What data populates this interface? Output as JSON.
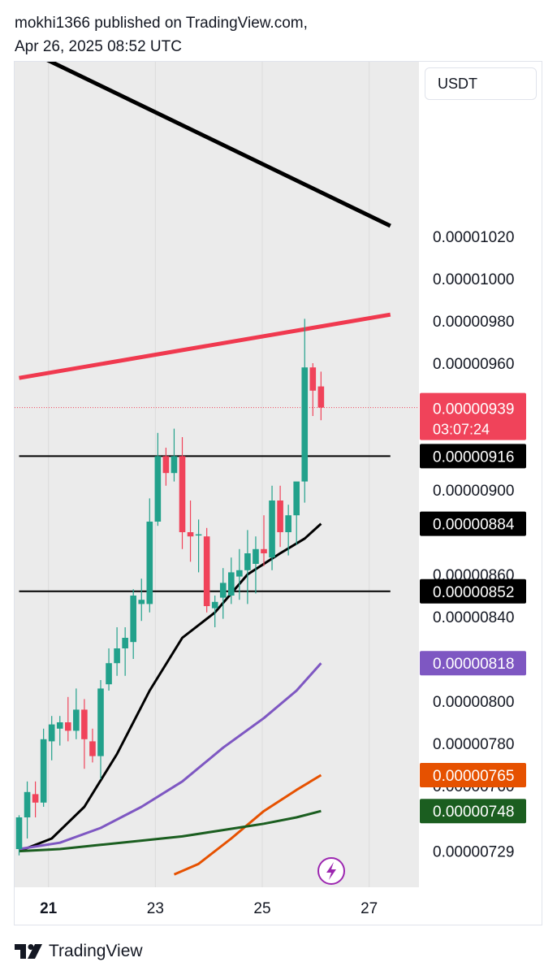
{
  "header": {
    "line1": "mokhi1366 published on TradingView.com,",
    "line2": "Apr 26, 2025 08:52 UTC"
  },
  "currency": "USDT",
  "footer": {
    "brand": "TradingView",
    "logo_icon": "tradingview-logo-icon"
  },
  "colors": {
    "up": "#22a18b",
    "down": "#f0435a",
    "black": "#000000",
    "purple": "#7e57c2",
    "orange": "#e65100",
    "green": "#1b5e20",
    "red_line": "#f0394f",
    "plot_bg": "#ebebeb"
  },
  "chart_data": {
    "type": "candlestick",
    "x_ticks": [
      "21",
      "23",
      "25",
      "27"
    ],
    "y_ticks": [
      "0.00001020",
      "0.00001000",
      "0.00000980",
      "0.00000960",
      "0.00000900",
      "0.00000860",
      "0.00000840",
      "0.00000800",
      "0.00000780",
      "0.00000760",
      "0.00000729"
    ],
    "last_price": {
      "value": "0.00000939",
      "countdown": "03:07:24"
    },
    "price_labels": [
      {
        "value": "0.00000916",
        "color": "#000000",
        "y": 9.16e-06
      },
      {
        "value": "0.00000884",
        "color": "#000000",
        "y": 8.84e-06
      },
      {
        "value": "0.00000852",
        "color": "#000000",
        "y": 8.52e-06
      },
      {
        "value": "0.00000818",
        "color": "#7e57c2",
        "y": 8.18e-06
      },
      {
        "value": "0.00000765",
        "color": "#e65100",
        "y": 7.65e-06
      },
      {
        "value": "0.00000748",
        "color": "#1b5e20",
        "y": 7.48e-06
      }
    ],
    "candles": [
      {
        "o": 7.3e-06,
        "h": 7.46e-06,
        "l": 7.27e-06,
        "c": 7.45e-06
      },
      {
        "o": 7.45e-06,
        "h": 7.62e-06,
        "l": 7.35e-06,
        "c": 7.57e-06
      },
      {
        "o": 7.56e-06,
        "h": 7.62e-06,
        "l": 7.45e-06,
        "c": 7.52e-06
      },
      {
        "o": 7.52e-06,
        "h": 7.87e-06,
        "l": 7.5e-06,
        "c": 7.82e-06
      },
      {
        "o": 7.81e-06,
        "h": 7.93e-06,
        "l": 7.72e-06,
        "c": 7.89e-06
      },
      {
        "o": 7.87e-06,
        "h": 7.93e-06,
        "l": 7.79e-06,
        "c": 7.9e-06
      },
      {
        "o": 7.9e-06,
        "h": 8.02e-06,
        "l": 7.81e-06,
        "c": 7.86e-06
      },
      {
        "o": 7.86e-06,
        "h": 8.06e-06,
        "l": 7.82e-06,
        "c": 7.96e-06
      },
      {
        "o": 7.96e-06,
        "h": 8.01e-06,
        "l": 7.68e-06,
        "c": 7.82e-06
      },
      {
        "o": 7.81e-06,
        "h": 7.87e-06,
        "l": 7.71e-06,
        "c": 7.74e-06
      },
      {
        "o": 7.74e-06,
        "h": 8.1e-06,
        "l": 7.63e-06,
        "c": 8.06e-06
      },
      {
        "o": 8.08e-06,
        "h": 8.25e-06,
        "l": 8.05e-06,
        "c": 8.18e-06
      },
      {
        "o": 8.18e-06,
        "h": 8.35e-06,
        "l": 8.12e-06,
        "c": 8.25e-06
      },
      {
        "o": 8.25e-06,
        "h": 8.35e-06,
        "l": 8.12e-06,
        "c": 8.3e-06
      },
      {
        "o": 8.28e-06,
        "h": 8.53e-06,
        "l": 8.2e-06,
        "c": 8.5e-06
      },
      {
        "o": 8.46e-06,
        "h": 8.58e-06,
        "l": 8.38e-06,
        "c": 8.48e-06
      },
      {
        "o": 8.46e-06,
        "h": 8.96e-06,
        "l": 8.42e-06,
        "c": 8.85e-06
      },
      {
        "o": 8.85e-06,
        "h": 9.27e-06,
        "l": 8.83e-06,
        "c": 9.16e-06
      },
      {
        "o": 9.16e-06,
        "h": 9.2e-06,
        "l": 9.02e-06,
        "c": 9.08e-06
      },
      {
        "o": 9.08e-06,
        "h": 9.29e-06,
        "l": 9.04e-06,
        "c": 9.16e-06
      },
      {
        "o": 9.16e-06,
        "h": 9.25e-06,
        "l": 8.72e-06,
        "c": 8.8e-06
      },
      {
        "o": 8.8e-06,
        "h": 8.95e-06,
        "l": 8.66e-06,
        "c": 8.78e-06
      },
      {
        "o": 8.79e-06,
        "h": 8.86e-06,
        "l": 8.61e-06,
        "c": 8.79e-06
      },
      {
        "o": 8.78e-06,
        "h": 8.82e-06,
        "l": 8.42e-06,
        "c": 8.45e-06
      },
      {
        "o": 8.44e-06,
        "h": 8.5e-06,
        "l": 8.35e-06,
        "c": 8.47e-06
      },
      {
        "o": 8.49e-06,
        "h": 8.63e-06,
        "l": 8.39e-06,
        "c": 8.56e-06
      },
      {
        "o": 8.5e-06,
        "h": 8.68e-06,
        "l": 8.46e-06,
        "c": 8.61e-06
      },
      {
        "o": 8.59e-06,
        "h": 8.72e-06,
        "l": 8.48e-06,
        "c": 8.62e-06
      },
      {
        "o": 8.62e-06,
        "h": 8.81e-06,
        "l": 8.46e-06,
        "c": 8.7e-06
      },
      {
        "o": 8.65e-06,
        "h": 8.78e-06,
        "l": 8.51e-06,
        "c": 8.72e-06
      },
      {
        "o": 8.72e-06,
        "h": 8.88e-06,
        "l": 8.64e-06,
        "c": 8.7e-06
      },
      {
        "o": 8.68e-06,
        "h": 9.02e-06,
        "l": 8.62e-06,
        "c": 8.95e-06
      },
      {
        "o": 8.95e-06,
        "h": 9.02e-06,
        "l": 8.73e-06,
        "c": 8.8e-06
      },
      {
        "o": 8.8e-06,
        "h": 8.93e-06,
        "l": 8.69e-06,
        "c": 8.88e-06
      },
      {
        "o": 8.88e-06,
        "h": 9.02e-06,
        "l": 8.74e-06,
        "c": 9.04e-06
      },
      {
        "o": 9.04e-06,
        "h": 9.81e-06,
        "l": 8.94e-06,
        "c": 9.58e-06
      },
      {
        "o": 9.58e-06,
        "h": 9.6e-06,
        "l": 9.35e-06,
        "c": 9.47e-06
      },
      {
        "o": 9.49e-06,
        "h": 9.56e-06,
        "l": 9.33e-06,
        "c": 9.39e-06
      }
    ],
    "lines": [
      {
        "name": "resistance",
        "color": "#000000",
        "points": [
          [
            0,
            1.11e-05
          ],
          [
            45.5,
            1.025e-05
          ]
        ]
      },
      {
        "name": "channel-top",
        "color": "#f0394f",
        "points": [
          [
            0,
            9.53e-06
          ],
          [
            45.5,
            9.83e-06
          ]
        ]
      },
      {
        "name": "level-916",
        "color": "#000000",
        "points": [
          [
            0,
            9.16e-06
          ],
          [
            45.5,
            9.16e-06
          ]
        ]
      },
      {
        "name": "level-852",
        "color": "#000000",
        "points": [
          [
            0,
            8.52e-06
          ],
          [
            45.5,
            8.52e-06
          ]
        ]
      }
    ],
    "moving_averages": [
      {
        "color": "#000000",
        "points": [
          [
            0,
            7.29e-06
          ],
          [
            4,
            7.35e-06
          ],
          [
            8,
            7.5e-06
          ],
          [
            12,
            7.75e-06
          ],
          [
            16,
            8.05e-06
          ],
          [
            20,
            8.3e-06
          ],
          [
            24,
            8.42e-06
          ],
          [
            28,
            8.6e-06
          ],
          [
            32,
            8.7e-06
          ],
          [
            35,
            8.77e-06
          ],
          [
            37,
            8.84e-06
          ]
        ]
      },
      {
        "color": "#7e57c2",
        "points": [
          [
            0,
            7.3e-06
          ],
          [
            5,
            7.33e-06
          ],
          [
            10,
            7.4e-06
          ],
          [
            15,
            7.5e-06
          ],
          [
            20,
            7.62e-06
          ],
          [
            25,
            7.78e-06
          ],
          [
            30,
            7.92e-06
          ],
          [
            34,
            8.05e-06
          ],
          [
            37,
            8.18e-06
          ]
        ]
      },
      {
        "color": "#e65100",
        "points": [
          [
            19,
            7.18e-06
          ],
          [
            22,
            7.23e-06
          ],
          [
            26,
            7.35e-06
          ],
          [
            30,
            7.48e-06
          ],
          [
            34,
            7.58e-06
          ],
          [
            37,
            7.65e-06
          ]
        ]
      },
      {
        "color": "#1b5e20",
        "points": [
          [
            0,
            7.29e-06
          ],
          [
            5,
            7.3e-06
          ],
          [
            10,
            7.32e-06
          ],
          [
            15,
            7.34e-06
          ],
          [
            20,
            7.36e-06
          ],
          [
            25,
            7.39e-06
          ],
          [
            30,
            7.42e-06
          ],
          [
            34,
            7.45e-06
          ],
          [
            37,
            7.48e-06
          ]
        ]
      }
    ]
  }
}
